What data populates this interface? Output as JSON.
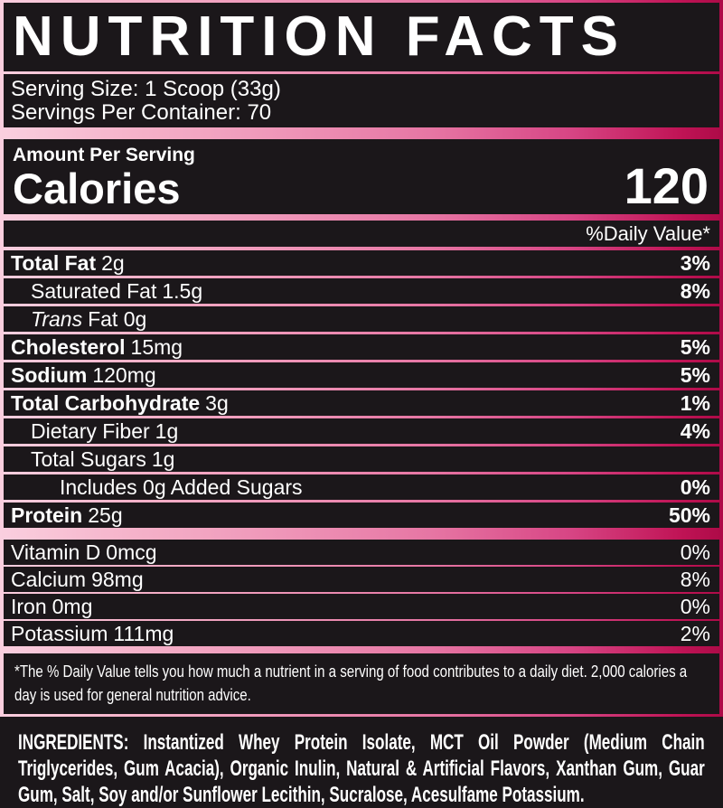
{
  "header": {
    "title": "NUTRITION FACTS"
  },
  "serving": {
    "serving_size": "Serving Size: 1 Scoop (33g)",
    "servings_per_container": "Servings Per Container: 70"
  },
  "calories": {
    "heading": "Amount Per Serving",
    "label": "Calories",
    "value": "120"
  },
  "daily_value_header": "%Daily Value*",
  "nutrients": [
    {
      "name": "Total Fat",
      "amount": "2g",
      "dv": "3%"
    },
    {
      "name": "Saturated Fat",
      "amount": "1.5g",
      "dv": "8%"
    },
    {
      "name": "Trans",
      "amount": "Fat 0g",
      "dv": ""
    },
    {
      "name": "Cholesterol",
      "amount": "15mg",
      "dv": "5%"
    },
    {
      "name": "Sodium",
      "amount": "120mg",
      "dv": "5%"
    },
    {
      "name": "Total Carbohydrate",
      "amount": "3g",
      "dv": "1%"
    },
    {
      "name": "Dietary Fiber",
      "amount": "1g",
      "dv": "4%"
    },
    {
      "name": "Total Sugars",
      "amount": "1g",
      "dv": ""
    },
    {
      "name": "Includes 0g Added Sugars",
      "amount": "",
      "dv": "0%"
    },
    {
      "name": "Protein",
      "amount": "25g",
      "dv": "50%"
    }
  ],
  "vitamins": [
    {
      "name": "Vitamin D",
      "amount": "0mcg",
      "dv": "0%"
    },
    {
      "name": "Calcium",
      "amount": "98mg",
      "dv": "8%"
    },
    {
      "name": "Iron",
      "amount": "0mg",
      "dv": "0%"
    },
    {
      "name": "Potassium",
      "amount": "111mg",
      "dv": "2%"
    }
  ],
  "footnote": "*The % Daily Value tells you how much a nutrient in a serving of food contributes to a daily diet. 2,000 calories a day is used for general nutrition advice.",
  "ingredients": {
    "label": "INGREDIENTS:",
    "text": "Instantized Whey Protein Isolate, MCT Oil Powder (Medium Chain Triglycerides, Gum Acacia), Organic Inulin, Natural & Artificial Flavors, Xanthan Gum, Guar Gum, Salt, Soy and/or Sunflower Lecithin, Sucralose, Acesulfame Potassium."
  },
  "colors": {
    "background": "#1b171a",
    "text": "#ffffff",
    "gradient_start": "#facfdf",
    "gradient_mid": "#e675a3",
    "gradient_end": "#ad0a47"
  }
}
